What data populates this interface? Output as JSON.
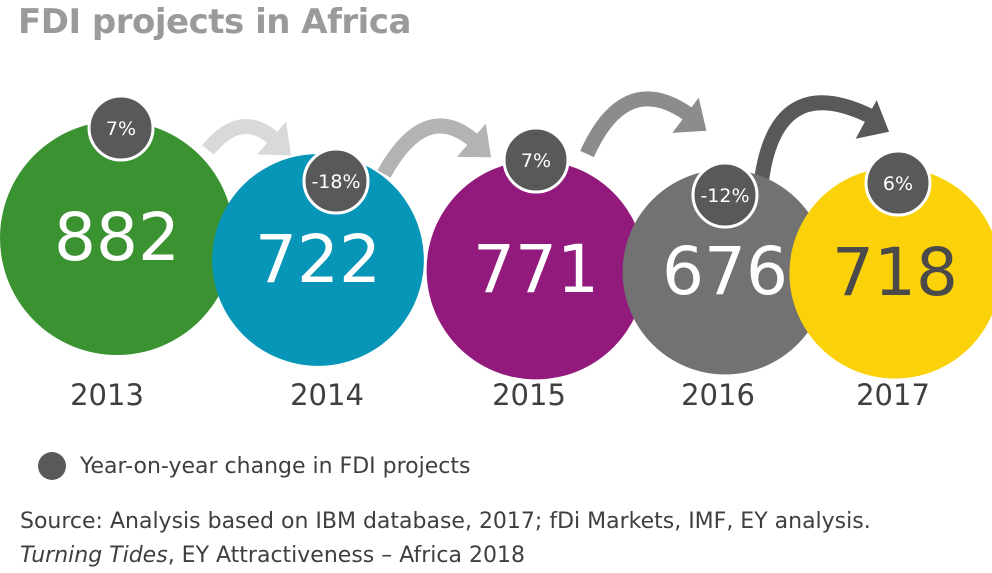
{
  "title": "FDI projects in Africa",
  "legend": {
    "label": "Year-on-year change in FDI projects",
    "color": "#595959"
  },
  "source": {
    "line1": "Source: Analysis based on IBM database, 2017; fDi Markets, IMF, EY analysis.",
    "line2_italic": "Turning Tides",
    "line2_rest": ", EY Attractiveness – Africa 2018"
  },
  "chart_data": {
    "type": "bubble",
    "title": "FDI projects in Africa",
    "categories": [
      "2013",
      "2014",
      "2015",
      "2016",
      "2017"
    ],
    "values": [
      882,
      722,
      771,
      676,
      718
    ],
    "changes": [
      "7%",
      "-18%",
      "7%",
      "-12%",
      "6%"
    ],
    "colors": [
      "#3a9230",
      "#0795b8",
      "#921a7c",
      "#727272",
      "#fbd20a"
    ],
    "value_text_colors": [
      "#ffffff",
      "#ffffff",
      "#ffffff",
      "#ffffff",
      "#4a4a4a"
    ],
    "arrow_colors": [
      "#d9d9d9",
      "#b3b3b3",
      "#8c8c8c",
      "#595959"
    ]
  }
}
